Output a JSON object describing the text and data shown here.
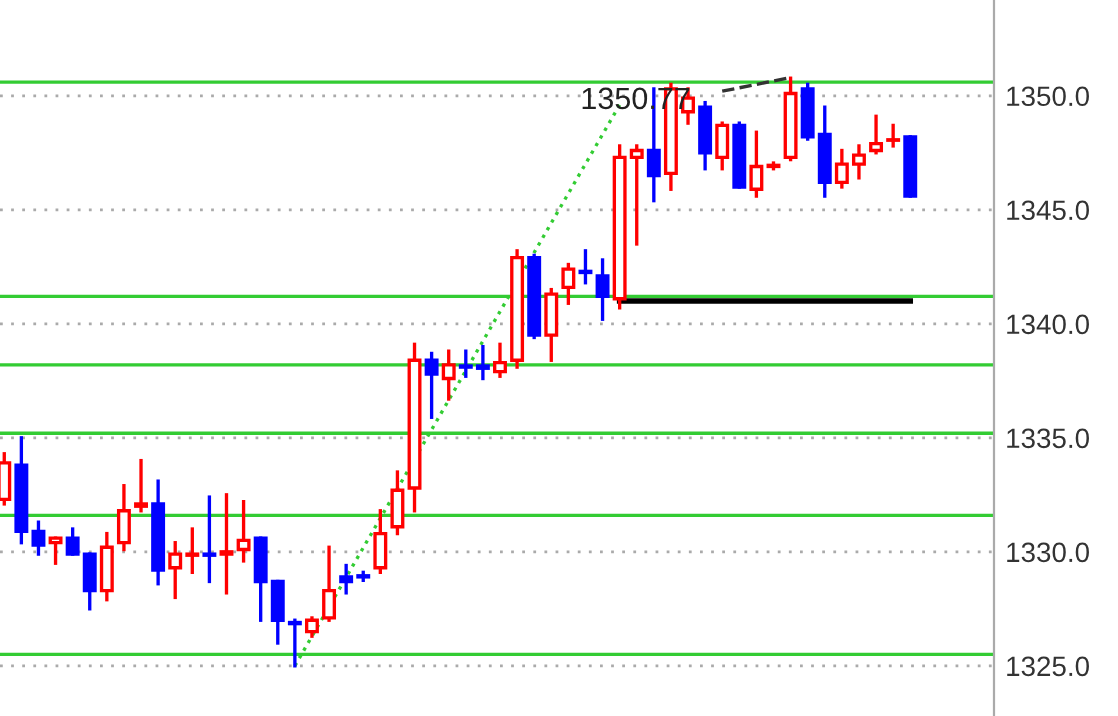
{
  "chart_data": {
    "type": "candlestick",
    "categories": [
      null,
      null,
      null,
      null,
      null,
      null,
      null,
      null,
      null,
      null,
      null,
      null,
      null,
      null,
      null,
      null,
      null,
      null,
      null,
      null,
      null,
      null,
      null,
      null,
      null,
      null,
      null,
      null,
      null,
      null,
      null,
      null,
      null,
      null,
      null,
      null,
      null,
      null,
      null,
      null,
      null,
      null,
      null,
      null,
      null,
      null,
      null,
      null,
      null,
      null,
      null,
      null,
      null,
      null
    ],
    "ohlc": [
      [
        1332.3,
        1334.3,
        1332.1,
        1333.9
      ],
      [
        1333.8,
        1335.0,
        1330.4,
        1330.9
      ],
      [
        1330.9,
        1331.3,
        1329.9,
        1330.3
      ],
      [
        1330.4,
        1330.6,
        1329.5,
        1330.6
      ],
      [
        1330.6,
        1331.0,
        1329.9,
        1329.9
      ],
      [
        1329.9,
        1329.9,
        1327.5,
        1328.3
      ],
      [
        1328.3,
        1330.8,
        1327.9,
        1330.2
      ],
      [
        1330.4,
        1332.9,
        1330.1,
        1331.8
      ],
      [
        1332.0,
        1334.0,
        1331.8,
        1332.1
      ],
      [
        1332.1,
        1333.1,
        1328.6,
        1329.2
      ],
      [
        1329.3,
        1330.4,
        1328.0,
        1329.9
      ],
      [
        1329.85,
        1331.0,
        1329.1,
        1329.9
      ],
      [
        1329.9,
        1332.4,
        1328.7,
        1329.85
      ],
      [
        1329.9,
        1332.5,
        1328.2,
        1330.0
      ],
      [
        1330.1,
        1332.2,
        1329.6,
        1330.5
      ],
      [
        1330.6,
        1330.6,
        1327.0,
        1328.7
      ],
      [
        1328.7,
        1328.7,
        1326.0,
        1327.0
      ],
      [
        1326.9,
        1327.0,
        1325.0,
        1326.85
      ],
      [
        1326.5,
        1327.1,
        1326.3,
        1327.0
      ],
      [
        1327.1,
        1330.2,
        1327.0,
        1328.3
      ],
      [
        1328.9,
        1329.4,
        1328.2,
        1328.7
      ],
      [
        1328.95,
        1329.1,
        1328.75,
        1328.9
      ],
      [
        1329.3,
        1331.8,
        1329.1,
        1330.8
      ],
      [
        1331.1,
        1333.5,
        1330.8,
        1332.7
      ],
      [
        1332.8,
        1339.1,
        1331.8,
        1338.4
      ],
      [
        1338.4,
        1338.7,
        1335.9,
        1337.8
      ],
      [
        1337.6,
        1338.8,
        1336.7,
        1338.2
      ],
      [
        1338.15,
        1338.8,
        1337.7,
        1338.1
      ],
      [
        1338.15,
        1339.0,
        1337.6,
        1338.05
      ],
      [
        1337.9,
        1339.1,
        1337.7,
        1338.3
      ],
      [
        1338.4,
        1343.2,
        1338.1,
        1342.9
      ],
      [
        1342.9,
        1343.0,
        1339.4,
        1339.5
      ],
      [
        1339.5,
        1341.5,
        1338.4,
        1341.3
      ],
      [
        1341.6,
        1342.6,
        1340.9,
        1342.4
      ],
      [
        1342.3,
        1343.2,
        1341.8,
        1342.25
      ],
      [
        1342.1,
        1342.8,
        1340.2,
        1341.2
      ],
      [
        1341.1,
        1347.8,
        1340.7,
        1347.3
      ],
      [
        1347.3,
        1347.8,
        1343.5,
        1347.6
      ],
      [
        1347.6,
        1350.3,
        1345.4,
        1346.5
      ],
      [
        1346.6,
        1350.5,
        1345.9,
        1350.3
      ],
      [
        1349.3,
        1350.3,
        1348.8,
        1349.9
      ],
      [
        1349.5,
        1349.7,
        1346.8,
        1347.5
      ],
      [
        1347.3,
        1348.8,
        1346.8,
        1348.7
      ],
      [
        1348.7,
        1348.8,
        1346.0,
        1346.0
      ],
      [
        1345.9,
        1348.4,
        1345.6,
        1346.9
      ],
      [
        1346.9,
        1347.05,
        1346.8,
        1346.95
      ],
      [
        1347.3,
        1350.77,
        1347.2,
        1350.1
      ],
      [
        1350.3,
        1350.5,
        1348.1,
        1348.2
      ],
      [
        1348.3,
        1349.5,
        1345.6,
        1346.2
      ],
      [
        1346.2,
        1347.6,
        1346.0,
        1347.0
      ],
      [
        1347.0,
        1347.8,
        1346.4,
        1347.4
      ],
      [
        1347.6,
        1349.1,
        1347.5,
        1347.9
      ],
      [
        1348.05,
        1348.7,
        1347.8,
        1348.07
      ],
      [
        1348.2,
        1348.2,
        1345.6,
        1345.6
      ]
    ],
    "colors": [
      "#ff0000",
      "#0000ff",
      "#0000ff",
      "#ff0000",
      "#0000ff",
      "#0000ff",
      "#ff0000",
      "#ff0000",
      "#ff0000",
      "#0000ff",
      "#ff0000",
      "#ff0000",
      "#0000ff",
      "#ff0000",
      "#ff0000",
      "#0000ff",
      "#0000ff",
      "#0000ff",
      "#ff0000",
      "#ff0000",
      "#0000ff",
      "#0000ff",
      "#ff0000",
      "#ff0000",
      "#ff0000",
      "#0000ff",
      "#ff0000",
      "#0000ff",
      "#0000ff",
      "#ff0000",
      "#ff0000",
      "#0000ff",
      "#ff0000",
      "#ff0000",
      "#0000ff",
      "#0000ff",
      "#ff0000",
      "#ff0000",
      "#0000ff",
      "#ff0000",
      "#ff0000",
      "#0000ff",
      "#ff0000",
      "#0000ff",
      "#ff0000",
      "#ff0000",
      "#ff0000",
      "#0000ff",
      "#0000ff",
      "#ff0000",
      "#ff0000",
      "#ff0000",
      "#ff0000",
      "#0000ff"
    ],
    "series": [
      {
        "type": "line",
        "color": "#33cc33",
        "line_style": "dotted",
        "values": [
          null,
          null,
          null,
          null,
          null,
          null,
          null,
          null,
          null,
          null,
          null,
          null,
          null,
          null,
          null,
          null,
          null,
          1325.0,
          null,
          null,
          null,
          null,
          null,
          null,
          null,
          null,
          null,
          null,
          null,
          null,
          null,
          null,
          null,
          null,
          null,
          null,
          1349.6,
          null,
          null,
          null,
          null,
          null,
          null,
          null,
          null,
          null,
          null,
          null,
          null,
          null,
          null,
          null,
          null,
          null
        ]
      },
      {
        "type": "line",
        "color": "#000000",
        "line_style": "solid",
        "values": [
          null,
          null,
          null,
          null,
          null,
          null,
          null,
          null,
          null,
          null,
          null,
          null,
          null,
          null,
          null,
          null,
          null,
          null,
          null,
          null,
          null,
          null,
          null,
          null,
          null,
          null,
          null,
          null,
          null,
          null,
          null,
          null,
          null,
          null,
          null,
          null,
          1341.0,
          null,
          null,
          null,
          null,
          null,
          null,
          null,
          null,
          null,
          null,
          null,
          null,
          null,
          null,
          null,
          null,
          1341.0
        ]
      },
      {
        "type": "line",
        "color": "#333333",
        "line_style": "dashed",
        "values": [
          null,
          null,
          null,
          null,
          null,
          null,
          null,
          null,
          null,
          null,
          null,
          null,
          null,
          null,
          null,
          null,
          null,
          null,
          null,
          null,
          null,
          null,
          null,
          null,
          null,
          null,
          null,
          null,
          null,
          null,
          null,
          null,
          null,
          null,
          null,
          null,
          null,
          null,
          null,
          null,
          null,
          null,
          1350.2,
          null,
          null,
          null,
          1350.8,
          null,
          null,
          null,
          null,
          null,
          null,
          null
        ]
      }
    ],
    "ref_lines": [
      {
        "axis": "y",
        "value": 1350.6,
        "color": "#33cc33"
      },
      {
        "axis": "y",
        "value": 1341.2,
        "color": "#33cc33"
      },
      {
        "axis": "y",
        "value": 1338.2,
        "color": "#33cc33"
      },
      {
        "axis": "y",
        "value": 1335.2,
        "color": "#33cc33"
      },
      {
        "axis": "y",
        "value": 1331.6,
        "color": "#33cc33"
      },
      {
        "axis": "y",
        "value": 1325.5,
        "color": "#33cc33"
      }
    ],
    "annotations": [
      "1350.77"
    ],
    "ylim": [
      1322.8,
      1354.2
    ],
    "yticks": [
      {
        "value": 1325,
        "label": "1325.0"
      },
      {
        "value": 1330,
        "label": "1330.0"
      },
      {
        "value": 1335,
        "label": "1335.0"
      },
      {
        "value": 1340,
        "label": "1340.0"
      },
      {
        "value": 1345,
        "label": "1345.0"
      },
      {
        "value": 1350,
        "label": "1350.0"
      }
    ],
    "grid": "y",
    "tick_labels": "y"
  }
}
